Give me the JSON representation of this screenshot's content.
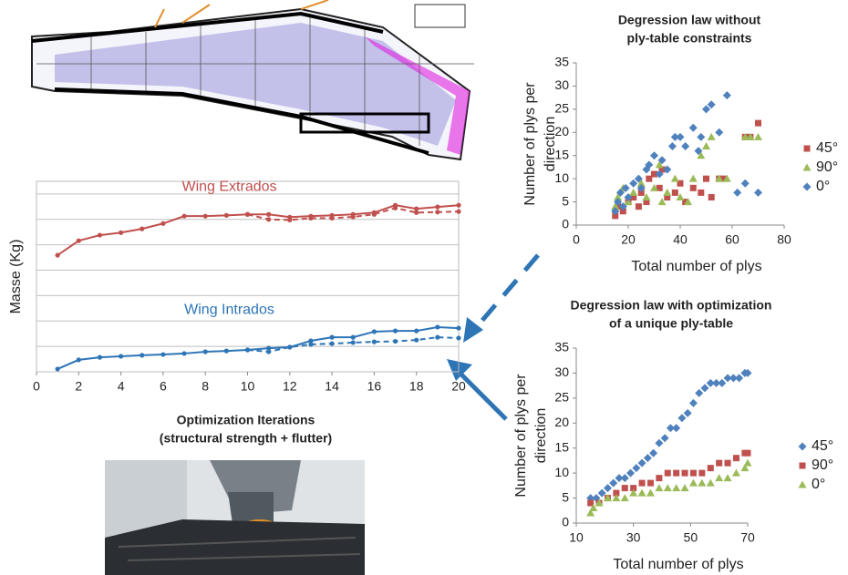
{
  "chart_data": [
    {
      "type": "line",
      "x_label": [
        "Optimization Iterations",
        "(structural strength + flutter)"
      ],
      "y_label": "Masse (Kg)",
      "x": [
        1,
        2,
        3,
        4,
        5,
        6,
        7,
        8,
        9,
        10,
        11,
        12,
        13,
        14,
        15,
        16,
        17,
        18,
        19,
        20
      ],
      "xlim": [
        0,
        20
      ],
      "xticks": [
        0,
        2,
        4,
        6,
        8,
        10,
        12,
        14,
        16,
        18,
        20
      ],
      "ylim": [
        0,
        7.5
      ],
      "yticks": [
        0,
        1,
        2,
        3,
        4,
        5,
        6,
        7
      ],
      "ytick_labels": false,
      "grid": true,
      "series": [
        {
          "name": "Wing Extrados",
          "color": "#c0504d",
          "values": [
            4.59,
            5.16,
            5.38,
            5.48,
            5.63,
            5.84,
            6.13,
            6.13,
            6.16,
            6.2,
            6.2,
            6.09,
            6.13,
            6.16,
            6.2,
            6.27,
            6.56,
            6.42,
            6.49,
            6.56
          ]
        },
        {
          "color": "#c0504d",
          "dash": true,
          "values": [
            null,
            null,
            null,
            null,
            null,
            null,
            null,
            null,
            null,
            6.2,
            6.0,
            5.98,
            6.05,
            6.05,
            6.1,
            6.2,
            6.45,
            6.27,
            6.29,
            6.31
          ]
        },
        {
          "name": "Wing Intrados",
          "color": "#2e75b6",
          "values": [
            0.11,
            0.47,
            0.57,
            0.61,
            0.65,
            0.68,
            0.72,
            0.79,
            0.82,
            0.86,
            0.93,
            0.97,
            1.22,
            1.36,
            1.36,
            1.58,
            1.61,
            1.61,
            1.76,
            1.72
          ]
        },
        {
          "color": "#2e75b6",
          "dash": true,
          "values": [
            null,
            null,
            null,
            null,
            null,
            null,
            null,
            null,
            null,
            0.86,
            0.79,
            0.97,
            1.08,
            1.11,
            1.15,
            1.18,
            1.2,
            1.25,
            1.36,
            1.33
          ]
        }
      ]
    },
    {
      "type": "scatter",
      "title": [
        "Degression law without",
        "ply-table constraints"
      ],
      "x_label": "Total number of plys",
      "y_label": [
        "Number of plys per",
        "direction"
      ],
      "xlim": [
        0,
        80
      ],
      "xticks": [
        0,
        20,
        40,
        60,
        80
      ],
      "ylim": [
        0,
        35
      ],
      "yticks": [
        0,
        5,
        10,
        15,
        20,
        25,
        30,
        35
      ],
      "series": [
        {
          "name": "45°",
          "color": "#c0504d",
          "marker": "square",
          "x": [
            15,
            16,
            18,
            20,
            22,
            24,
            25,
            27,
            28,
            30,
            32,
            33,
            35,
            38,
            40,
            42,
            45,
            48,
            50,
            52,
            55,
            57,
            65,
            67,
            70
          ],
          "values": [
            2,
            4,
            3,
            5,
            6,
            4,
            7,
            5,
            10,
            11,
            8,
            12,
            6,
            7,
            9,
            5,
            8,
            7,
            10,
            6,
            10,
            10,
            19,
            19,
            22
          ]
        },
        {
          "name": "90°",
          "color": "#9bbb59",
          "marker": "triangle",
          "x": [
            15,
            16,
            18,
            20,
            22,
            25,
            27,
            30,
            32,
            33,
            35,
            38,
            40,
            43,
            45,
            48,
            50,
            52,
            55,
            58,
            65,
            67,
            70
          ],
          "values": [
            4,
            6,
            8,
            5,
            7,
            9,
            6,
            8,
            13,
            5,
            7,
            10,
            6,
            5,
            10,
            15,
            17,
            19,
            10,
            10,
            19,
            19,
            19
          ]
        },
        {
          "name": "0°",
          "color": "#4f81bd",
          "marker": "diamond",
          "x": [
            15,
            16,
            17,
            18,
            19,
            20,
            22,
            24,
            25,
            27,
            28,
            30,
            32,
            33,
            35,
            37,
            38,
            40,
            42,
            45,
            47,
            48,
            50,
            52,
            55,
            58,
            62,
            65,
            70
          ],
          "values": [
            3,
            5,
            7,
            4,
            8,
            6,
            9,
            10,
            8,
            12,
            13,
            15,
            11,
            14,
            12,
            17,
            19,
            19,
            17,
            21,
            16,
            19,
            25,
            26,
            20,
            28,
            7,
            9,
            7
          ]
        }
      ]
    },
    {
      "type": "scatter",
      "title": [
        "Degression law with optimization",
        "of a unique ply-table"
      ],
      "x_label": "Total number of plys",
      "y_label": [
        "Number of plys per",
        "direction"
      ],
      "xlim": [
        10,
        70
      ],
      "xticks": [
        10,
        30,
        50,
        70
      ],
      "ylim": [
        0,
        35
      ],
      "yticks": [
        0,
        5,
        10,
        15,
        20,
        25,
        30,
        35
      ],
      "series": [
        {
          "name": "45°",
          "color": "#4f81bd",
          "marker": "diamond",
          "x": [
            15,
            17,
            19,
            21,
            23,
            25,
            27,
            29,
            31,
            33,
            35,
            37,
            39,
            41,
            43,
            45,
            47,
            49,
            51,
            53,
            55,
            57,
            59,
            61,
            63,
            65,
            67,
            69,
            70
          ],
          "values": [
            5,
            5,
            6,
            7,
            8,
            9,
            9,
            10,
            11,
            12,
            13,
            14,
            16,
            17,
            19,
            19,
            21,
            22,
            24,
            26,
            27,
            28,
            28,
            28,
            29,
            29,
            29,
            30,
            30
          ]
        },
        {
          "name": "90°",
          "color": "#c0504d",
          "marker": "square",
          "x": [
            15,
            18,
            21,
            24,
            27,
            30,
            33,
            36,
            39,
            42,
            45,
            48,
            51,
            54,
            57,
            60,
            63,
            66,
            69,
            70
          ],
          "values": [
            4,
            4,
            5,
            6,
            7,
            7,
            8,
            8,
            9,
            10,
            10,
            10,
            10,
            10,
            11,
            12,
            12,
            13,
            14,
            14
          ]
        },
        {
          "name": "0°",
          "color": "#9bbb59",
          "marker": "triangle",
          "x": [
            15,
            16,
            18,
            21,
            24,
            27,
            30,
            33,
            36,
            39,
            42,
            45,
            48,
            51,
            54,
            57,
            60,
            63,
            66,
            69,
            70
          ],
          "values": [
            2,
            3,
            4,
            5,
            5,
            5,
            6,
            6,
            6,
            7,
            7,
            7,
            7,
            8,
            8,
            8,
            9,
            9,
            10,
            11,
            12
          ]
        }
      ]
    }
  ]
}
